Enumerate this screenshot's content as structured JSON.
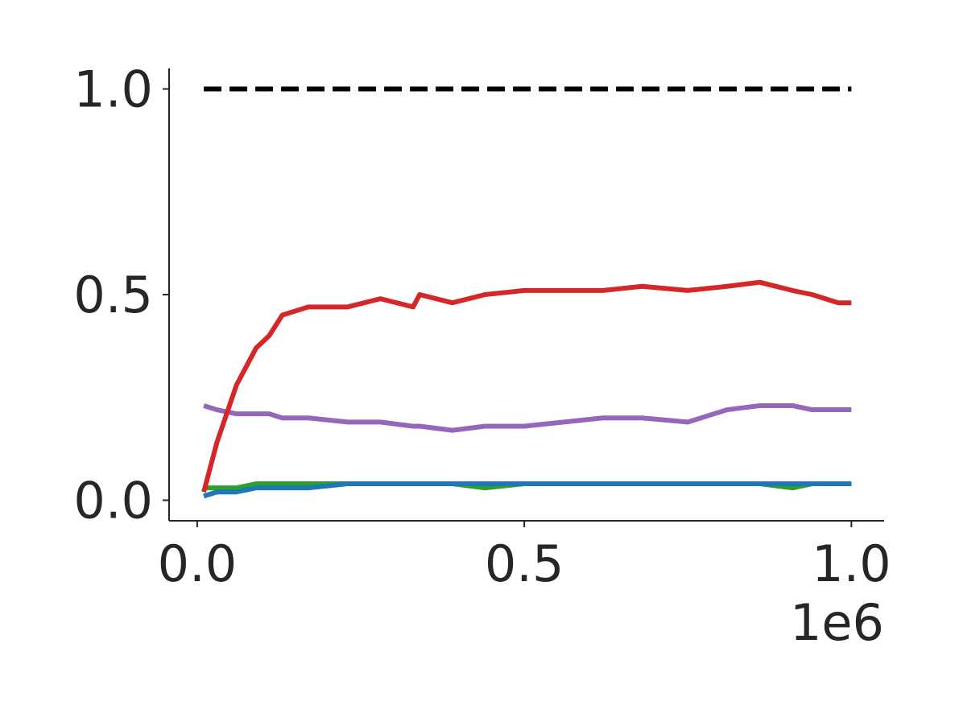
{
  "chart_data": {
    "type": "line",
    "x_offset_label": "1e6",
    "xlim": [
      -0.043,
      1.05
    ],
    "ylim": [
      -0.05,
      1.05
    ],
    "xticks": [
      {
        "value": 0,
        "label": "0.0"
      },
      {
        "value": 0.5,
        "label": "0.5"
      },
      {
        "value": 1,
        "label": "1.0"
      }
    ],
    "yticks": [
      {
        "value": 0,
        "label": "0.0"
      },
      {
        "value": 0.5,
        "label": "0.5"
      },
      {
        "value": 1,
        "label": "1.0"
      }
    ],
    "grid": false,
    "series": [
      {
        "color": "#000000",
        "dashed": true,
        "x": [
          0.01,
          1.0
        ],
        "values": [
          1,
          1
        ]
      },
      {
        "color": "#2ca02c",
        "x": [
          0.01,
          0.03,
          0.06,
          0.09,
          0.11,
          0.13,
          0.17,
          0.23,
          0.28,
          0.33,
          0.34,
          0.39,
          0.44,
          0.5,
          0.56,
          0.62,
          0.68,
          0.75,
          0.81,
          0.86,
          0.91,
          0.94,
          0.98,
          1.0
        ],
        "values": [
          0.03,
          0.03,
          0.03,
          0.04,
          0.04,
          0.04,
          0.04,
          0.04,
          0.04,
          0.04,
          0.04,
          0.04,
          0.03,
          0.04,
          0.04,
          0.04,
          0.04,
          0.04,
          0.04,
          0.04,
          0.03,
          0.04,
          0.04,
          0.04
        ]
      },
      {
        "color": "#9467bd",
        "x": [
          0.01,
          0.03,
          0.06,
          0.09,
          0.11,
          0.13,
          0.17,
          0.23,
          0.28,
          0.33,
          0.34,
          0.39,
          0.44,
          0.5,
          0.56,
          0.62,
          0.68,
          0.75,
          0.81,
          0.86,
          0.91,
          0.94,
          0.98,
          1.0
        ],
        "values": [
          0.23,
          0.22,
          0.21,
          0.21,
          0.21,
          0.2,
          0.2,
          0.19,
          0.19,
          0.18,
          0.18,
          0.17,
          0.18,
          0.18,
          0.19,
          0.2,
          0.2,
          0.19,
          0.22,
          0.23,
          0.23,
          0.22,
          0.22,
          0.22
        ]
      },
      {
        "color": "#d62728",
        "x": [
          0.01,
          0.03,
          0.06,
          0.09,
          0.11,
          0.13,
          0.17,
          0.23,
          0.28,
          0.33,
          0.34,
          0.39,
          0.44,
          0.5,
          0.56,
          0.62,
          0.68,
          0.75,
          0.81,
          0.86,
          0.91,
          0.94,
          0.98,
          1.0
        ],
        "values": [
          0.02,
          0.14,
          0.28,
          0.37,
          0.4,
          0.45,
          0.47,
          0.47,
          0.49,
          0.47,
          0.5,
          0.48,
          0.5,
          0.51,
          0.51,
          0.51,
          0.52,
          0.51,
          0.52,
          0.53,
          0.51,
          0.5,
          0.48,
          0.48
        ]
      },
      {
        "color": "#1f77b4",
        "x": [
          0.01,
          0.03,
          0.06,
          0.09,
          0.11,
          0.13,
          0.17,
          0.23,
          0.28,
          0.33,
          0.34,
          0.39,
          0.44,
          0.5,
          0.56,
          0.62,
          0.68,
          0.75,
          0.81,
          0.86,
          0.91,
          0.94,
          0.98,
          1.0
        ],
        "values": [
          0.01,
          0.02,
          0.02,
          0.03,
          0.03,
          0.03,
          0.03,
          0.04,
          0.04,
          0.04,
          0.04,
          0.04,
          0.04,
          0.04,
          0.04,
          0.04,
          0.04,
          0.04,
          0.04,
          0.04,
          0.04,
          0.04,
          0.04,
          0.04
        ]
      }
    ]
  }
}
